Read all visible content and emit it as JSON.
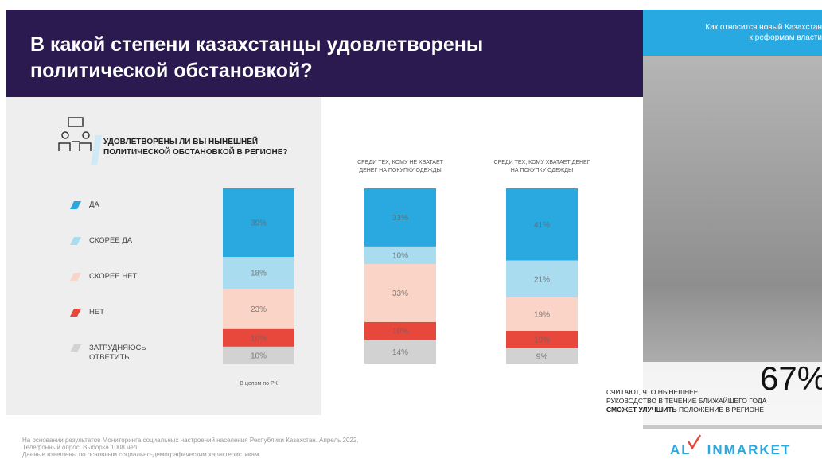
{
  "chart_data": {
    "type": "stacked_bar",
    "title": [
      "В какой степени казахстанцы удовлетворены",
      "политической обстановкой?"
    ],
    "question": "УДОВЛЕТВОРЕНЫ ЛИ ВЫ НЫНЕШНЕЙ ПОЛИТИЧЕСКОЙ ОБСТАНОВКОЙ В РЕГИОНЕ?",
    "categories": [
      "В целом по РК",
      "СРЕДИ ТЕХ, КОМУ НЕ ХВАТАЕТ ДЕНЕГ НА ПОКУПКУ ОДЕЖДЫ",
      "СРЕДИ ТЕХ, КОМУ ХВАТАЕТ ДЕНЕГ НА ПОКУПКУ ОДЕЖДЫ"
    ],
    "ylim": [
      0,
      100
    ],
    "series": [
      {
        "name": "ДА",
        "color": "#2aa9e0",
        "values": [
          39,
          33,
          41
        ],
        "value_labels": [
          "39%",
          "33%",
          "41%"
        ]
      },
      {
        "name": "СКОРЕЕ ДА",
        "color": "#a9dcef",
        "values": [
          18,
          10,
          21
        ],
        "value_labels": [
          "18%",
          "10%",
          "21%"
        ]
      },
      {
        "name": "СКОРЕЕ НЕТ",
        "color": "#fad4c7",
        "values": [
          23,
          33,
          19
        ],
        "value_labels": [
          "23%",
          "33%",
          "19%"
        ]
      },
      {
        "name": "НЕТ",
        "color": "#e8473c",
        "values": [
          10,
          10,
          10
        ],
        "value_labels": [
          "10%",
          "10%",
          "10%"
        ]
      },
      {
        "name": "ЗАТРУДНЯЮСЬ ОТВЕТИТЬ",
        "color": "#d2d2d2",
        "values": [
          10,
          14,
          9
        ],
        "value_labels": [
          "10%",
          "14%",
          "9%"
        ]
      }
    ]
  },
  "sidebar": {
    "heading": [
      "Как относится новый Казахстан",
      "к реформам власти"
    ],
    "highlight": {
      "value": 67,
      "label": "67%"
    },
    "statement": [
      "СЧИТАЮТ, ЧТО НЫНЕШНЕЕ",
      "РУКОВОДСТВО В ТЕЧЕНИЕ БЛИЖАЙШЕГО ГОДА"
    ],
    "statement_bold": "СМОЖЕТ УЛУЧШИТЬ",
    "statement_rest": "ПОЛОЖЕНИЕ В РЕГИОНЕ"
  },
  "footnote": [
    "На основании результатов Мониторинга социальных настроений населения Республики Казахстан. Апрель 2022.",
    "Телефонный опрос. Выборка 1008 чел.",
    "Данные взвешены по основным социально-демографическим характеристикам."
  ],
  "logo": {
    "left": "AL",
    "right": "INMARKET"
  }
}
